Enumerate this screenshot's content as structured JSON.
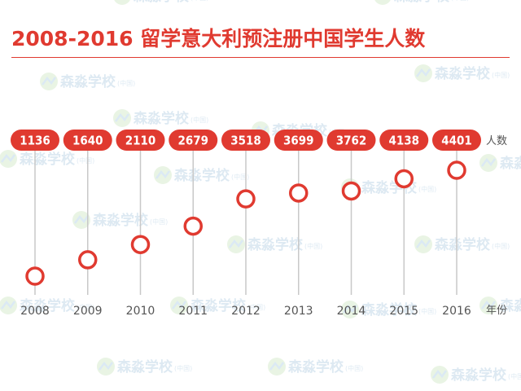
{
  "header": {
    "title": "2008-2016 留学意大利预注册中国学生人数"
  },
  "colors": {
    "accent": "#e03a30",
    "line": "#c8c8c8",
    "text": "#555555"
  },
  "chart_data": {
    "type": "scatter",
    "title": "2008-2016 留学意大利预注册中国学生人数",
    "x": [
      "2008",
      "2009",
      "2010",
      "2011",
      "2012",
      "2013",
      "2014",
      "2015",
      "2016"
    ],
    "values": [
      1136,
      1640,
      2110,
      2679,
      3518,
      3699,
      3762,
      4138,
      4401
    ],
    "value_axis_label": "人数",
    "category_axis_label": "年份",
    "grid": false,
    "legend": "none"
  },
  "watermark": {
    "brand": "森淼学校",
    "suffix": "(中国)"
  }
}
